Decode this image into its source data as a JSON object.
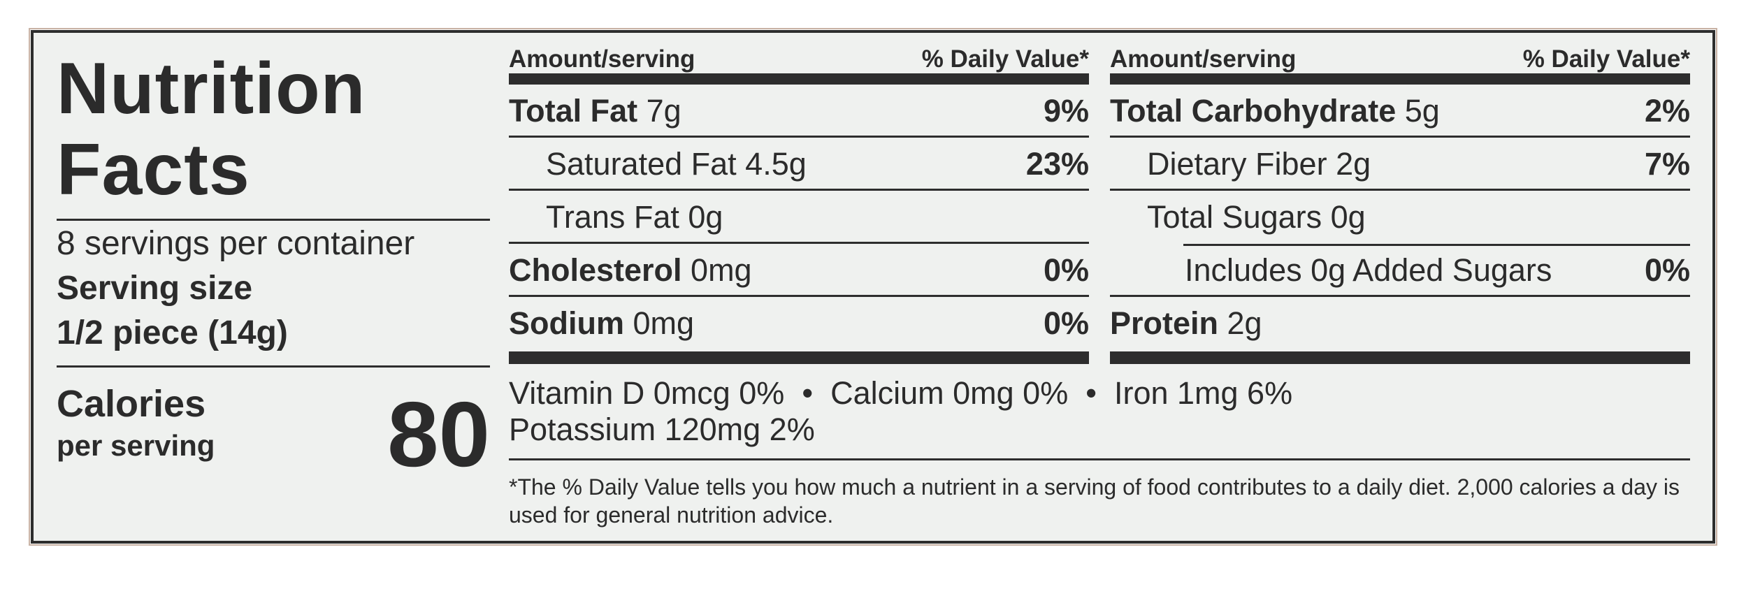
{
  "title_line1": "Nutrition",
  "title_line2": "Facts",
  "servings_per_container": "8 servings per container",
  "serving_size_label": "Serving size",
  "serving_size_value": "1/2 piece (14g)",
  "calories_label": "Calories",
  "calories_sublabel": "per serving",
  "calories_value": "80",
  "table_left": {
    "header_left": "Amount/serving",
    "header_right": "% Daily Value*",
    "rows": [
      {
        "name": "Total Fat",
        "amount": " 7g",
        "dv": "9%"
      },
      {
        "name": "Saturated Fat 4.5g",
        "amount": "",
        "dv": "23%"
      },
      {
        "name": "Trans Fat 0g",
        "amount": "",
        "dv": ""
      },
      {
        "name": "Cholesterol",
        "amount": " 0mg",
        "dv": "0%"
      },
      {
        "name": "Sodium",
        "amount": " 0mg",
        "dv": "0%"
      }
    ]
  },
  "table_right": {
    "header_left": "Amount/serving",
    "header_right": "% Daily Value*",
    "rows": [
      {
        "name": "Total Carbohydrate",
        "amount": " 5g",
        "dv": "2%"
      },
      {
        "name": "Dietary Fiber 2g",
        "amount": "",
        "dv": "7%"
      },
      {
        "name": "Total Sugars 0g",
        "amount": "",
        "dv": ""
      },
      {
        "name": "Includes 0g Added Sugars",
        "amount": "",
        "dv": "0%"
      },
      {
        "name": "Protein",
        "amount": " 2g",
        "dv": ""
      }
    ]
  },
  "vitamins_line1": "Vitamin D 0mcg 0%  •  Calcium 0mg 0%  •  Iron 1mg 6%",
  "vitamins_line2": "Potassium 120mg 2%",
  "footnote": "*The % Daily Value tells you how much a nutrient in a serving of food contributes to a daily diet. 2,000 calories a day is used for general nutrition advice."
}
